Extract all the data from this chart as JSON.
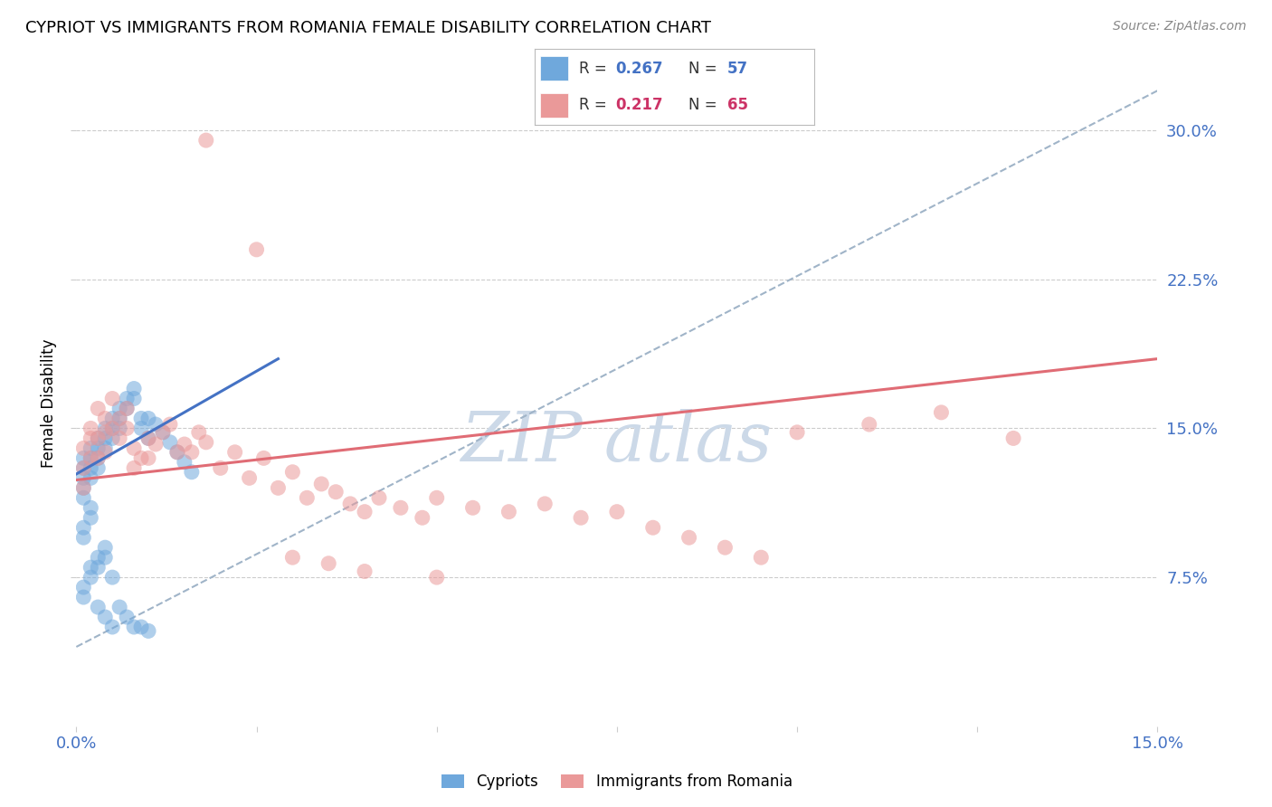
{
  "title": "CYPRIOT VS IMMIGRANTS FROM ROMANIA FEMALE DISABILITY CORRELATION CHART",
  "source": "Source: ZipAtlas.com",
  "ylabel": "Female Disability",
  "ytick_labels": [
    "30.0%",
    "22.5%",
    "15.0%",
    "7.5%"
  ],
  "ytick_values": [
    0.3,
    0.225,
    0.15,
    0.075
  ],
  "xmin": 0.0,
  "xmax": 0.15,
  "ymin": 0.0,
  "ymax": 0.325,
  "color_blue": "#6fa8dc",
  "color_pink": "#ea9999",
  "color_blue_line": "#4472c4",
  "color_pink_line": "#e06c75",
  "color_dashed": "#a0b4c8",
  "color_text_blue": "#4472c4",
  "color_text_pink": "#cc3366",
  "watermark_color": "#ccd9e8",
  "background_color": "#ffffff",
  "grid_color": "#cccccc",
  "cypriot_x": [
    0.001,
    0.001,
    0.001,
    0.001,
    0.001,
    0.002,
    0.002,
    0.002,
    0.002,
    0.003,
    0.003,
    0.003,
    0.003,
    0.004,
    0.004,
    0.004,
    0.005,
    0.005,
    0.005,
    0.006,
    0.006,
    0.006,
    0.007,
    0.007,
    0.008,
    0.008,
    0.009,
    0.009,
    0.01,
    0.01,
    0.011,
    0.012,
    0.013,
    0.014,
    0.015,
    0.016,
    0.001,
    0.001,
    0.002,
    0.002,
    0.003,
    0.003,
    0.004,
    0.004,
    0.005,
    0.001,
    0.001,
    0.002,
    0.002,
    0.003,
    0.004,
    0.005,
    0.006,
    0.007,
    0.008,
    0.009,
    0.01
  ],
  "cypriot_y": [
    0.135,
    0.13,
    0.125,
    0.12,
    0.115,
    0.14,
    0.135,
    0.13,
    0.125,
    0.145,
    0.14,
    0.135,
    0.13,
    0.15,
    0.145,
    0.14,
    0.155,
    0.15,
    0.145,
    0.16,
    0.155,
    0.15,
    0.165,
    0.16,
    0.17,
    0.165,
    0.155,
    0.15,
    0.155,
    0.145,
    0.152,
    0.148,
    0.143,
    0.138,
    0.133,
    0.128,
    0.1,
    0.095,
    0.11,
    0.105,
    0.085,
    0.08,
    0.09,
    0.085,
    0.075,
    0.07,
    0.065,
    0.08,
    0.075,
    0.06,
    0.055,
    0.05,
    0.06,
    0.055,
    0.05,
    0.05,
    0.048
  ],
  "romania_x": [
    0.001,
    0.001,
    0.001,
    0.002,
    0.002,
    0.002,
    0.003,
    0.003,
    0.003,
    0.004,
    0.004,
    0.004,
    0.005,
    0.005,
    0.006,
    0.006,
    0.007,
    0.007,
    0.008,
    0.008,
    0.009,
    0.01,
    0.01,
    0.011,
    0.012,
    0.013,
    0.014,
    0.015,
    0.016,
    0.017,
    0.018,
    0.02,
    0.022,
    0.024,
    0.026,
    0.028,
    0.03,
    0.032,
    0.034,
    0.036,
    0.038,
    0.04,
    0.042,
    0.045,
    0.048,
    0.05,
    0.055,
    0.06,
    0.065,
    0.07,
    0.075,
    0.08,
    0.085,
    0.09,
    0.095,
    0.1,
    0.11,
    0.12,
    0.13,
    0.018,
    0.025,
    0.03,
    0.035,
    0.04,
    0.05
  ],
  "romania_y": [
    0.14,
    0.13,
    0.12,
    0.15,
    0.145,
    0.135,
    0.16,
    0.145,
    0.135,
    0.155,
    0.148,
    0.138,
    0.165,
    0.15,
    0.155,
    0.145,
    0.16,
    0.15,
    0.14,
    0.13,
    0.135,
    0.145,
    0.135,
    0.142,
    0.148,
    0.152,
    0.138,
    0.142,
    0.138,
    0.148,
    0.143,
    0.13,
    0.138,
    0.125,
    0.135,
    0.12,
    0.128,
    0.115,
    0.122,
    0.118,
    0.112,
    0.108,
    0.115,
    0.11,
    0.105,
    0.115,
    0.11,
    0.108,
    0.112,
    0.105,
    0.108,
    0.1,
    0.095,
    0.09,
    0.085,
    0.148,
    0.152,
    0.158,
    0.145,
    0.295,
    0.24,
    0.085,
    0.082,
    0.078,
    0.075
  ],
  "blue_line_x": [
    0.0,
    0.028
  ],
  "blue_line_y": [
    0.127,
    0.185
  ],
  "pink_line_x": [
    0.0,
    0.15
  ],
  "pink_line_y": [
    0.124,
    0.185
  ],
  "dash_line_x": [
    0.0,
    0.15
  ],
  "dash_line_y": [
    0.04,
    0.32
  ]
}
